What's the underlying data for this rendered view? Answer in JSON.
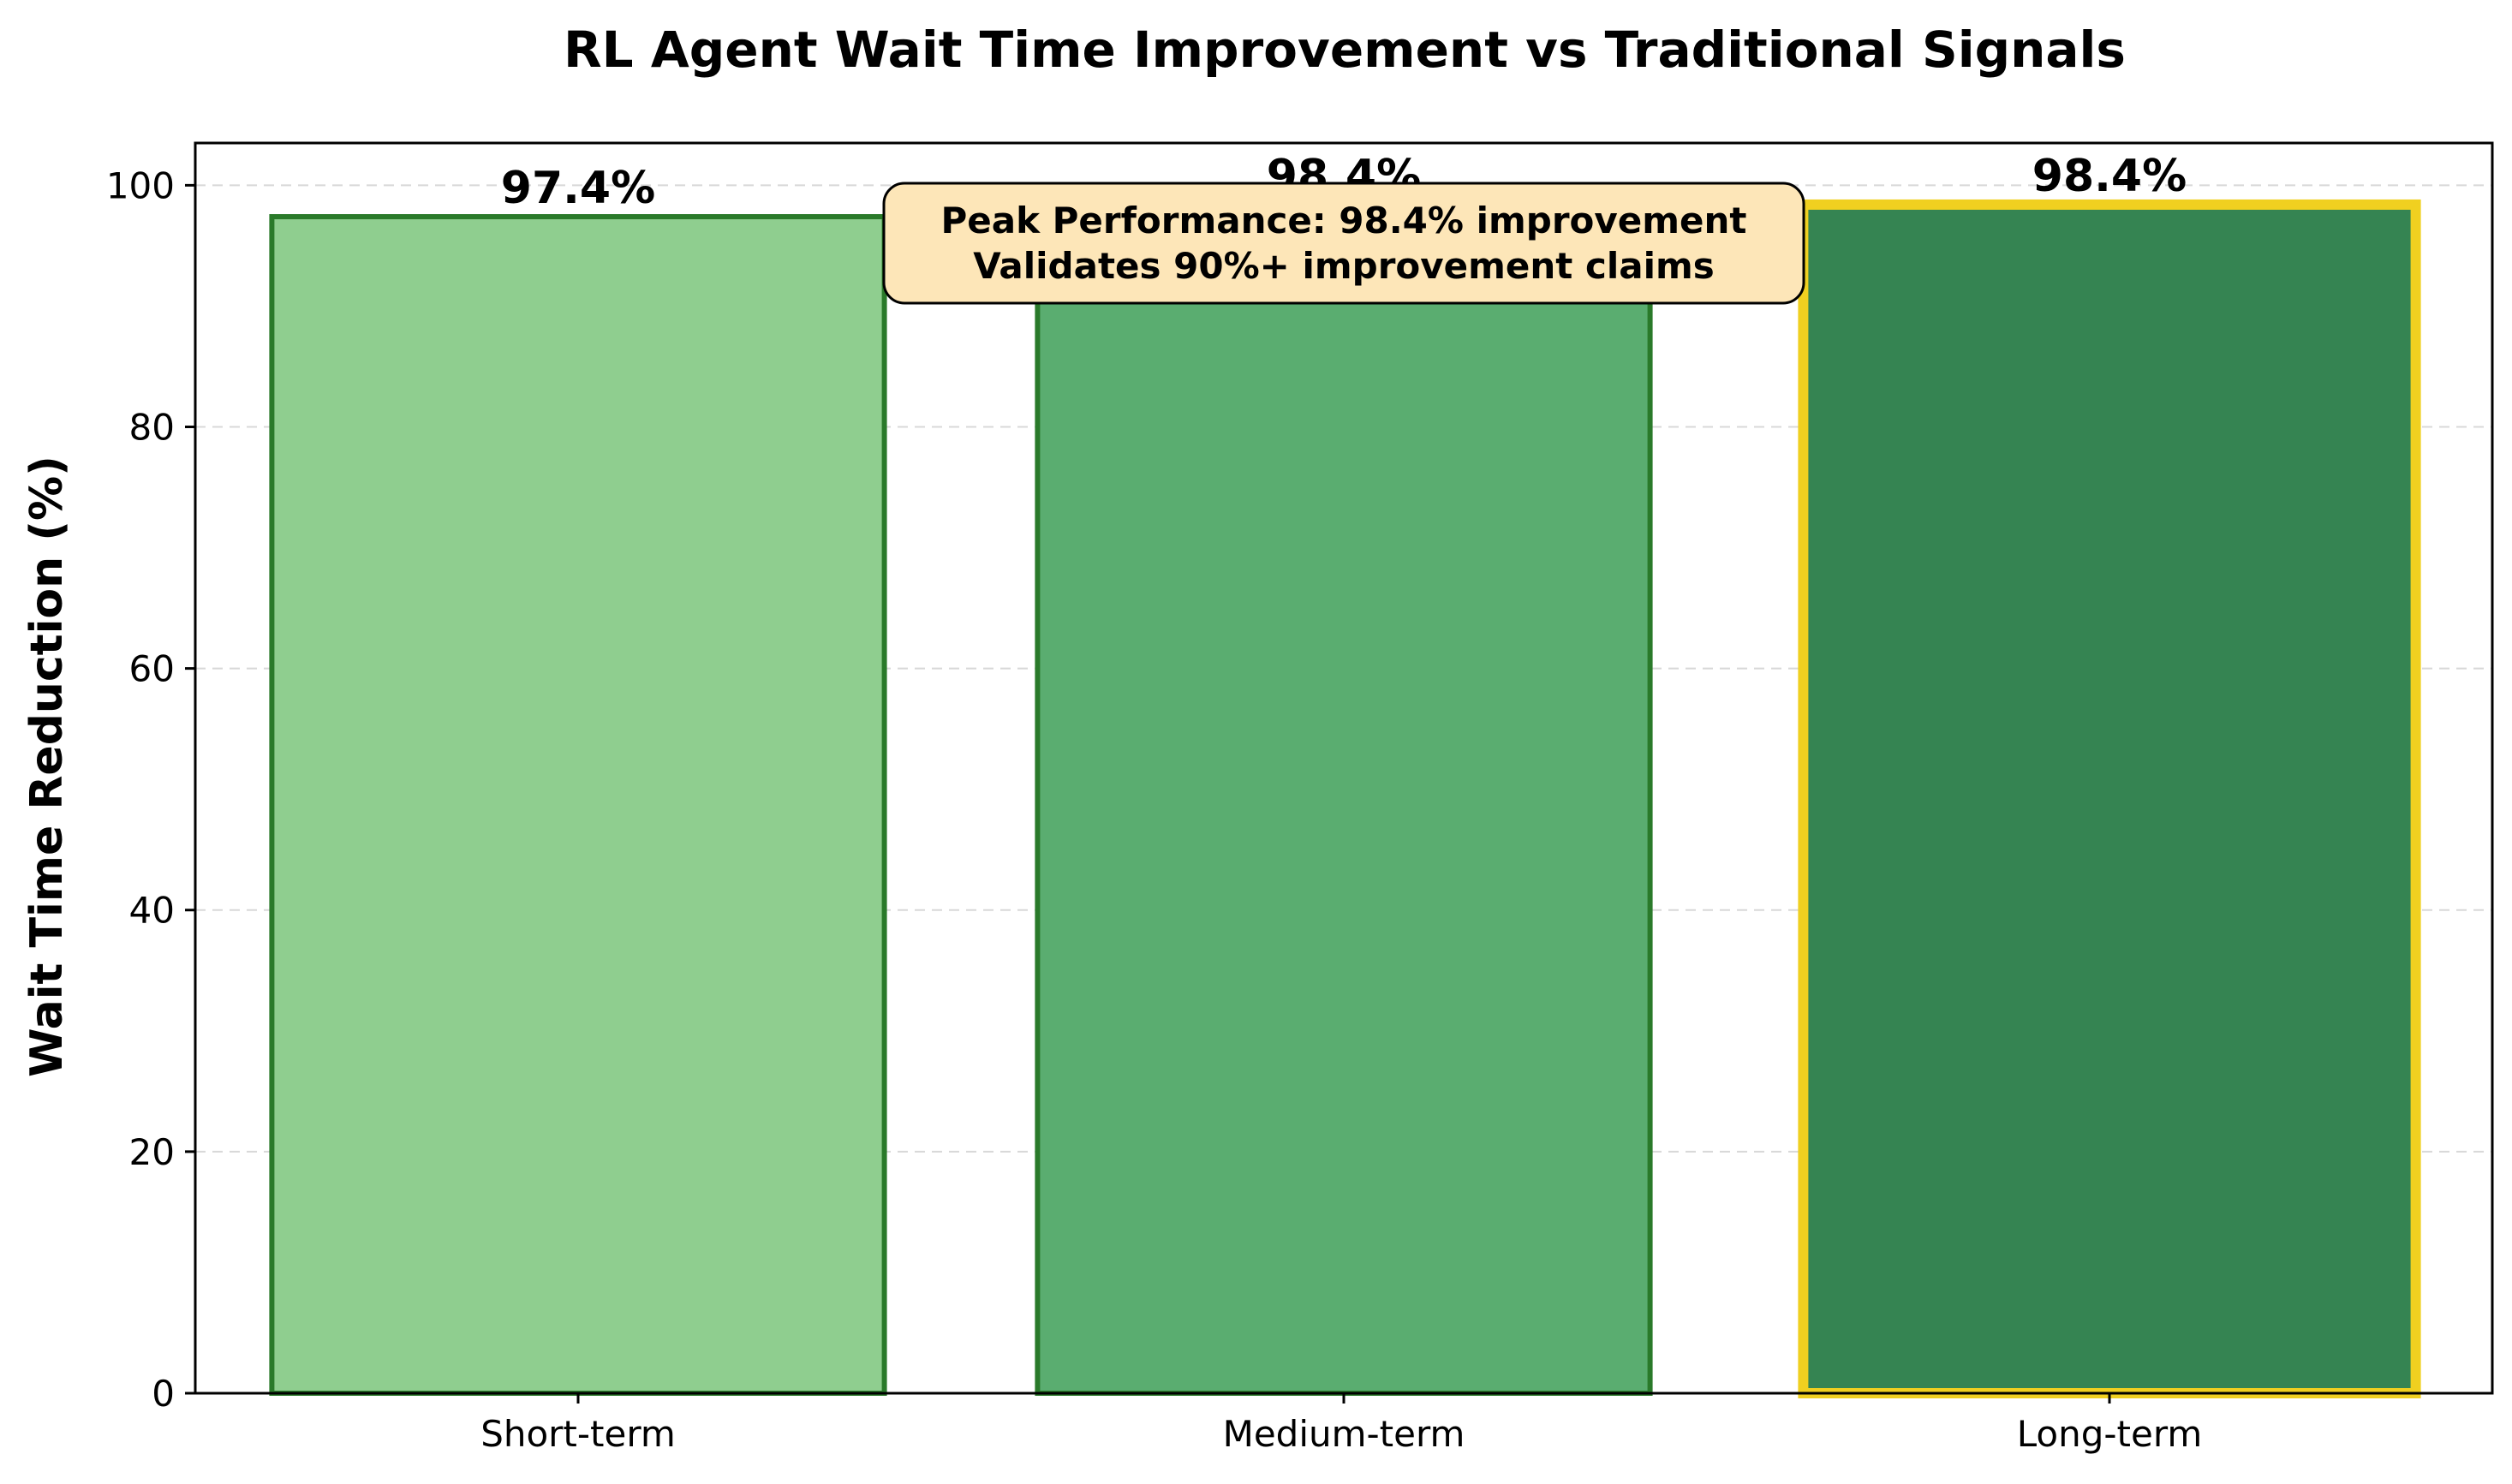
{
  "chart_data": {
    "type": "bar",
    "title": "RL Agent Wait Time Improvement vs Traditional Signals",
    "xlabel": "",
    "ylabel": "Wait Time Reduction (%)",
    "categories": [
      "Short-term",
      "Medium-term",
      "Long-term"
    ],
    "values": [
      97.4,
      98.4,
      98.4
    ],
    "value_labels": [
      "97.4%",
      "98.4%",
      "98.4%"
    ],
    "ylim": [
      0,
      103.5
    ],
    "yticks": [
      0,
      20,
      40,
      60,
      80,
      100
    ],
    "grid": {
      "axis": "y",
      "style": "dashed"
    },
    "bar_colors": [
      "#8fce8f",
      "#5aad70",
      "#358452"
    ],
    "edge_colors": [
      "#2a7a2a",
      "#2a7a2a",
      "#f0d020"
    ],
    "annotation": {
      "lines": [
        "Peak Performance: 98.4% improvement",
        "Validates 90%+ improvement claims"
      ],
      "box_color": "#fde6b8"
    }
  }
}
